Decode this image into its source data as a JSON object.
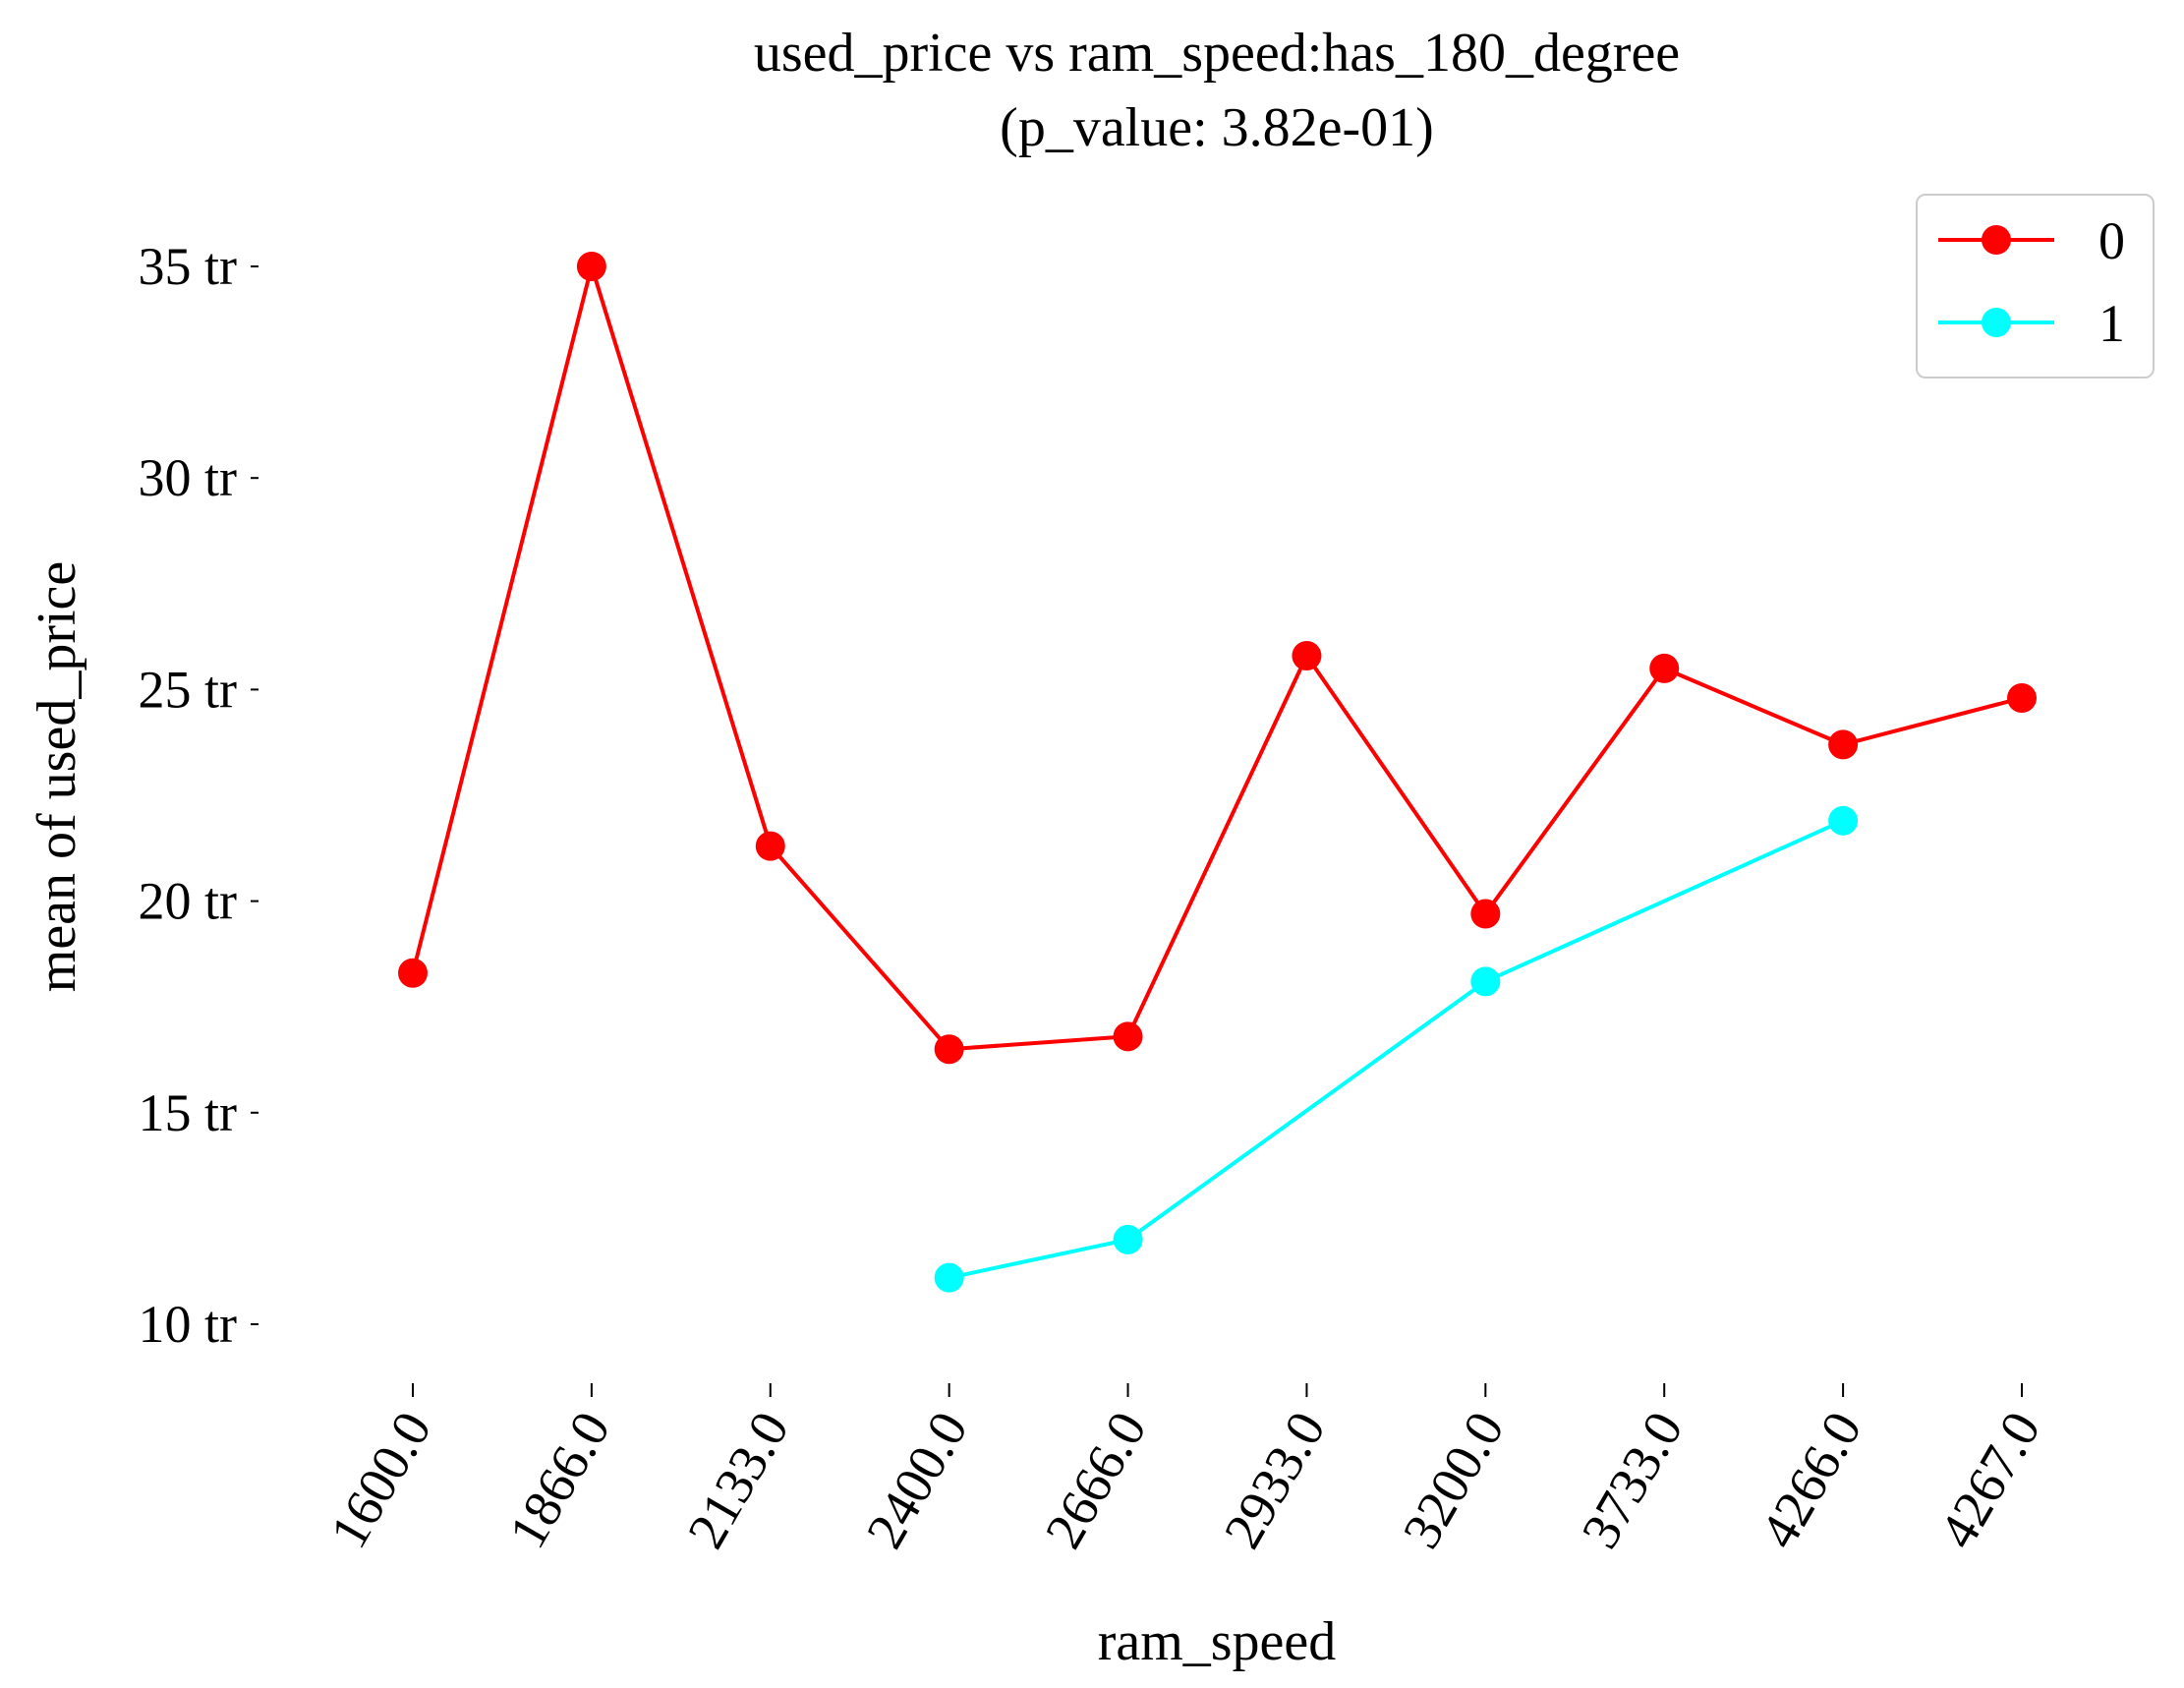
{
  "chart_data": {
    "type": "line",
    "title": "used_price vs ram_speed:has_180_degree",
    "subtitle": "(p_value: 3.82e-01)",
    "xlabel": "ram_speed",
    "ylabel": "mean of used_price",
    "categories": [
      "1600.0",
      "1866.0",
      "2133.0",
      "2400.0",
      "2666.0",
      "2933.0",
      "3200.0",
      "3733.0",
      "4266.0",
      "4267.0"
    ],
    "yticks": [
      {
        "value": 10,
        "label": "10 tr"
      },
      {
        "value": 15,
        "label": "15 tr"
      },
      {
        "value": 20,
        "label": "20 tr"
      },
      {
        "value": 25,
        "label": "25 tr"
      },
      {
        "value": 30,
        "label": "30 tr"
      },
      {
        "value": 35,
        "label": "35 tr"
      }
    ],
    "ylim": [
      9.0,
      36.7
    ],
    "grid": false,
    "legend_position": "top-right",
    "series": [
      {
        "name": "0",
        "color": "#ff0000",
        "values": [
          18.3,
          35.0,
          21.3,
          16.5,
          16.8,
          25.8,
          19.7,
          25.5,
          23.7,
          24.8
        ]
      },
      {
        "name": "1",
        "color": "#00ffff",
        "values": [
          null,
          null,
          null,
          11.1,
          12.0,
          null,
          18.1,
          null,
          21.9,
          null
        ]
      }
    ]
  }
}
